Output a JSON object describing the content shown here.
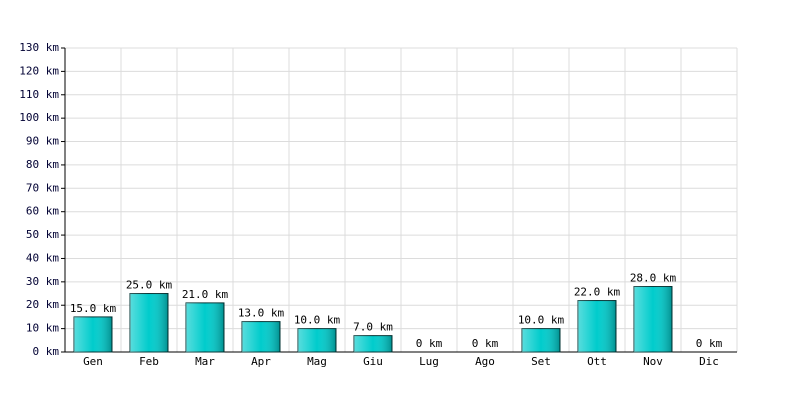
{
  "chart_data": {
    "type": "bar",
    "categories": [
      "Gen",
      "Feb",
      "Mar",
      "Apr",
      "Mag",
      "Giu",
      "Lug",
      "Ago",
      "Set",
      "Ott",
      "Nov",
      "Dic"
    ],
    "values": [
      15,
      25,
      21,
      13,
      10,
      7,
      0,
      0,
      10,
      22,
      28,
      0
    ],
    "value_labels": [
      "15.0 km",
      "25.0 km",
      "21.0 km",
      "13.0 km",
      "10.0 km",
      "7.0 km",
      "0 km",
      "0 km",
      "10.0 km",
      "22.0 km",
      "28.0 km",
      "0 km"
    ],
    "color": "#00cccc",
    "ylim": [
      0,
      130
    ],
    "yticks": [
      {
        "value": 0,
        "label": "0 km"
      },
      {
        "value": 10,
        "label": "10 km"
      },
      {
        "value": 20,
        "label": "20 km"
      },
      {
        "value": 30,
        "label": "30 km"
      },
      {
        "value": 40,
        "label": "40 km"
      },
      {
        "value": 50,
        "label": "50 km"
      },
      {
        "value": 60,
        "label": "60 km"
      },
      {
        "value": 70,
        "label": "70 km"
      },
      {
        "value": 80,
        "label": "80 km"
      },
      {
        "value": 90,
        "label": "90 km"
      },
      {
        "value": 100,
        "label": "100 km"
      },
      {
        "value": 110,
        "label": "110 km"
      },
      {
        "value": 120,
        "label": "120 km"
      },
      {
        "value": 130,
        "label": "130 km"
      }
    ],
    "grid": true
  }
}
